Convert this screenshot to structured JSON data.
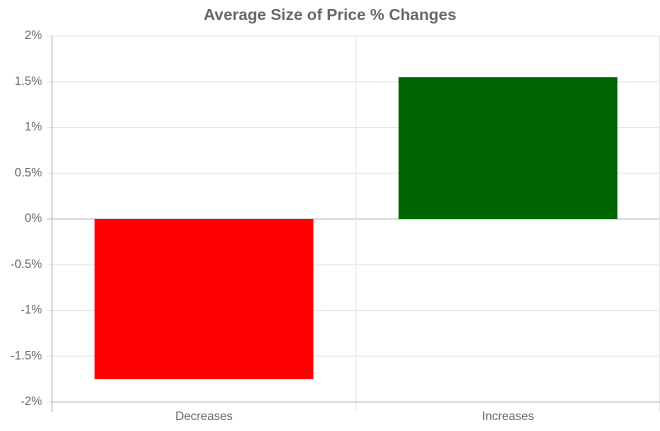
{
  "chart_data": {
    "type": "bar",
    "title": "Average Size of Price % Changes",
    "categories": [
      "Decreases",
      "Increases"
    ],
    "values": [
      -1.75,
      1.55
    ],
    "colors": [
      "#ff0000",
      "#006400"
    ],
    "ylim": [
      -2,
      2
    ],
    "yticks": [
      {
        "value": -2,
        "label": "-2%"
      },
      {
        "value": -1.5,
        "label": "-1.5%"
      },
      {
        "value": -1,
        "label": "-1%"
      },
      {
        "value": -0.5,
        "label": "-0.5%"
      },
      {
        "value": 0,
        "label": "0%"
      },
      {
        "value": 0.5,
        "label": "0.5%"
      },
      {
        "value": 1,
        "label": "1%"
      },
      {
        "value": 1.5,
        "label": "1.5%"
      },
      {
        "value": 2,
        "label": "2%"
      }
    ],
    "grid": true
  }
}
